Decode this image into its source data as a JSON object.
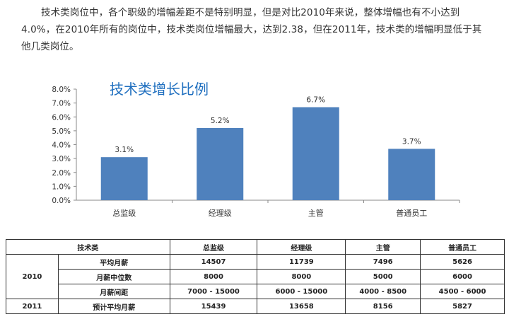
{
  "paragraph": "技术类岗位中，各个职级的增幅差距不是特别明显，但是对比2010年来说，整体增幅也有不小达到4.0%，在2010年所有的岗位中，技术类岗位增幅最大，达到2.38，但在2011年，技术类的增幅明显低于其他几类岗位。",
  "chart_data": {
    "type": "bar",
    "title": "技术类增长比例",
    "categories": [
      "总监级",
      "经理级",
      "主管",
      "普通员工"
    ],
    "values": [
      3.1,
      5.2,
      6.7,
      3.7
    ],
    "value_labels": [
      "3.1%",
      "5.2%",
      "6.7%",
      "3.7%"
    ],
    "ylim": [
      0,
      8
    ],
    "yticks": [
      "0.0%",
      "1.0%",
      "2.0%",
      "3.0%",
      "4.0%",
      "5.0%",
      "6.0%",
      "7.0%",
      "8.0%"
    ],
    "bar_color": "#4f81bd",
    "grid": false,
    "xlabel": "",
    "ylabel": ""
  },
  "table": {
    "header": [
      "技术类",
      "总监级",
      "经理级",
      "主管",
      "普通员工"
    ],
    "year_2010": "2010",
    "year_2011": "2011",
    "rows_2010": [
      {
        "label": "平均月薪",
        "values": [
          "14507",
          "11739",
          "7496",
          "5626"
        ]
      },
      {
        "label": "月薪中位数",
        "values": [
          "8000",
          "8000",
          "5000",
          "6000"
        ]
      },
      {
        "label": "月薪间距",
        "values": [
          "7000 - 15000",
          "6000 - 15000",
          "4000 - 8500",
          "4500 - 6000"
        ]
      }
    ],
    "row_2011": {
      "label": "预计平均月薪",
      "values": [
        "15439",
        "13658",
        "8156",
        "5827"
      ]
    }
  }
}
